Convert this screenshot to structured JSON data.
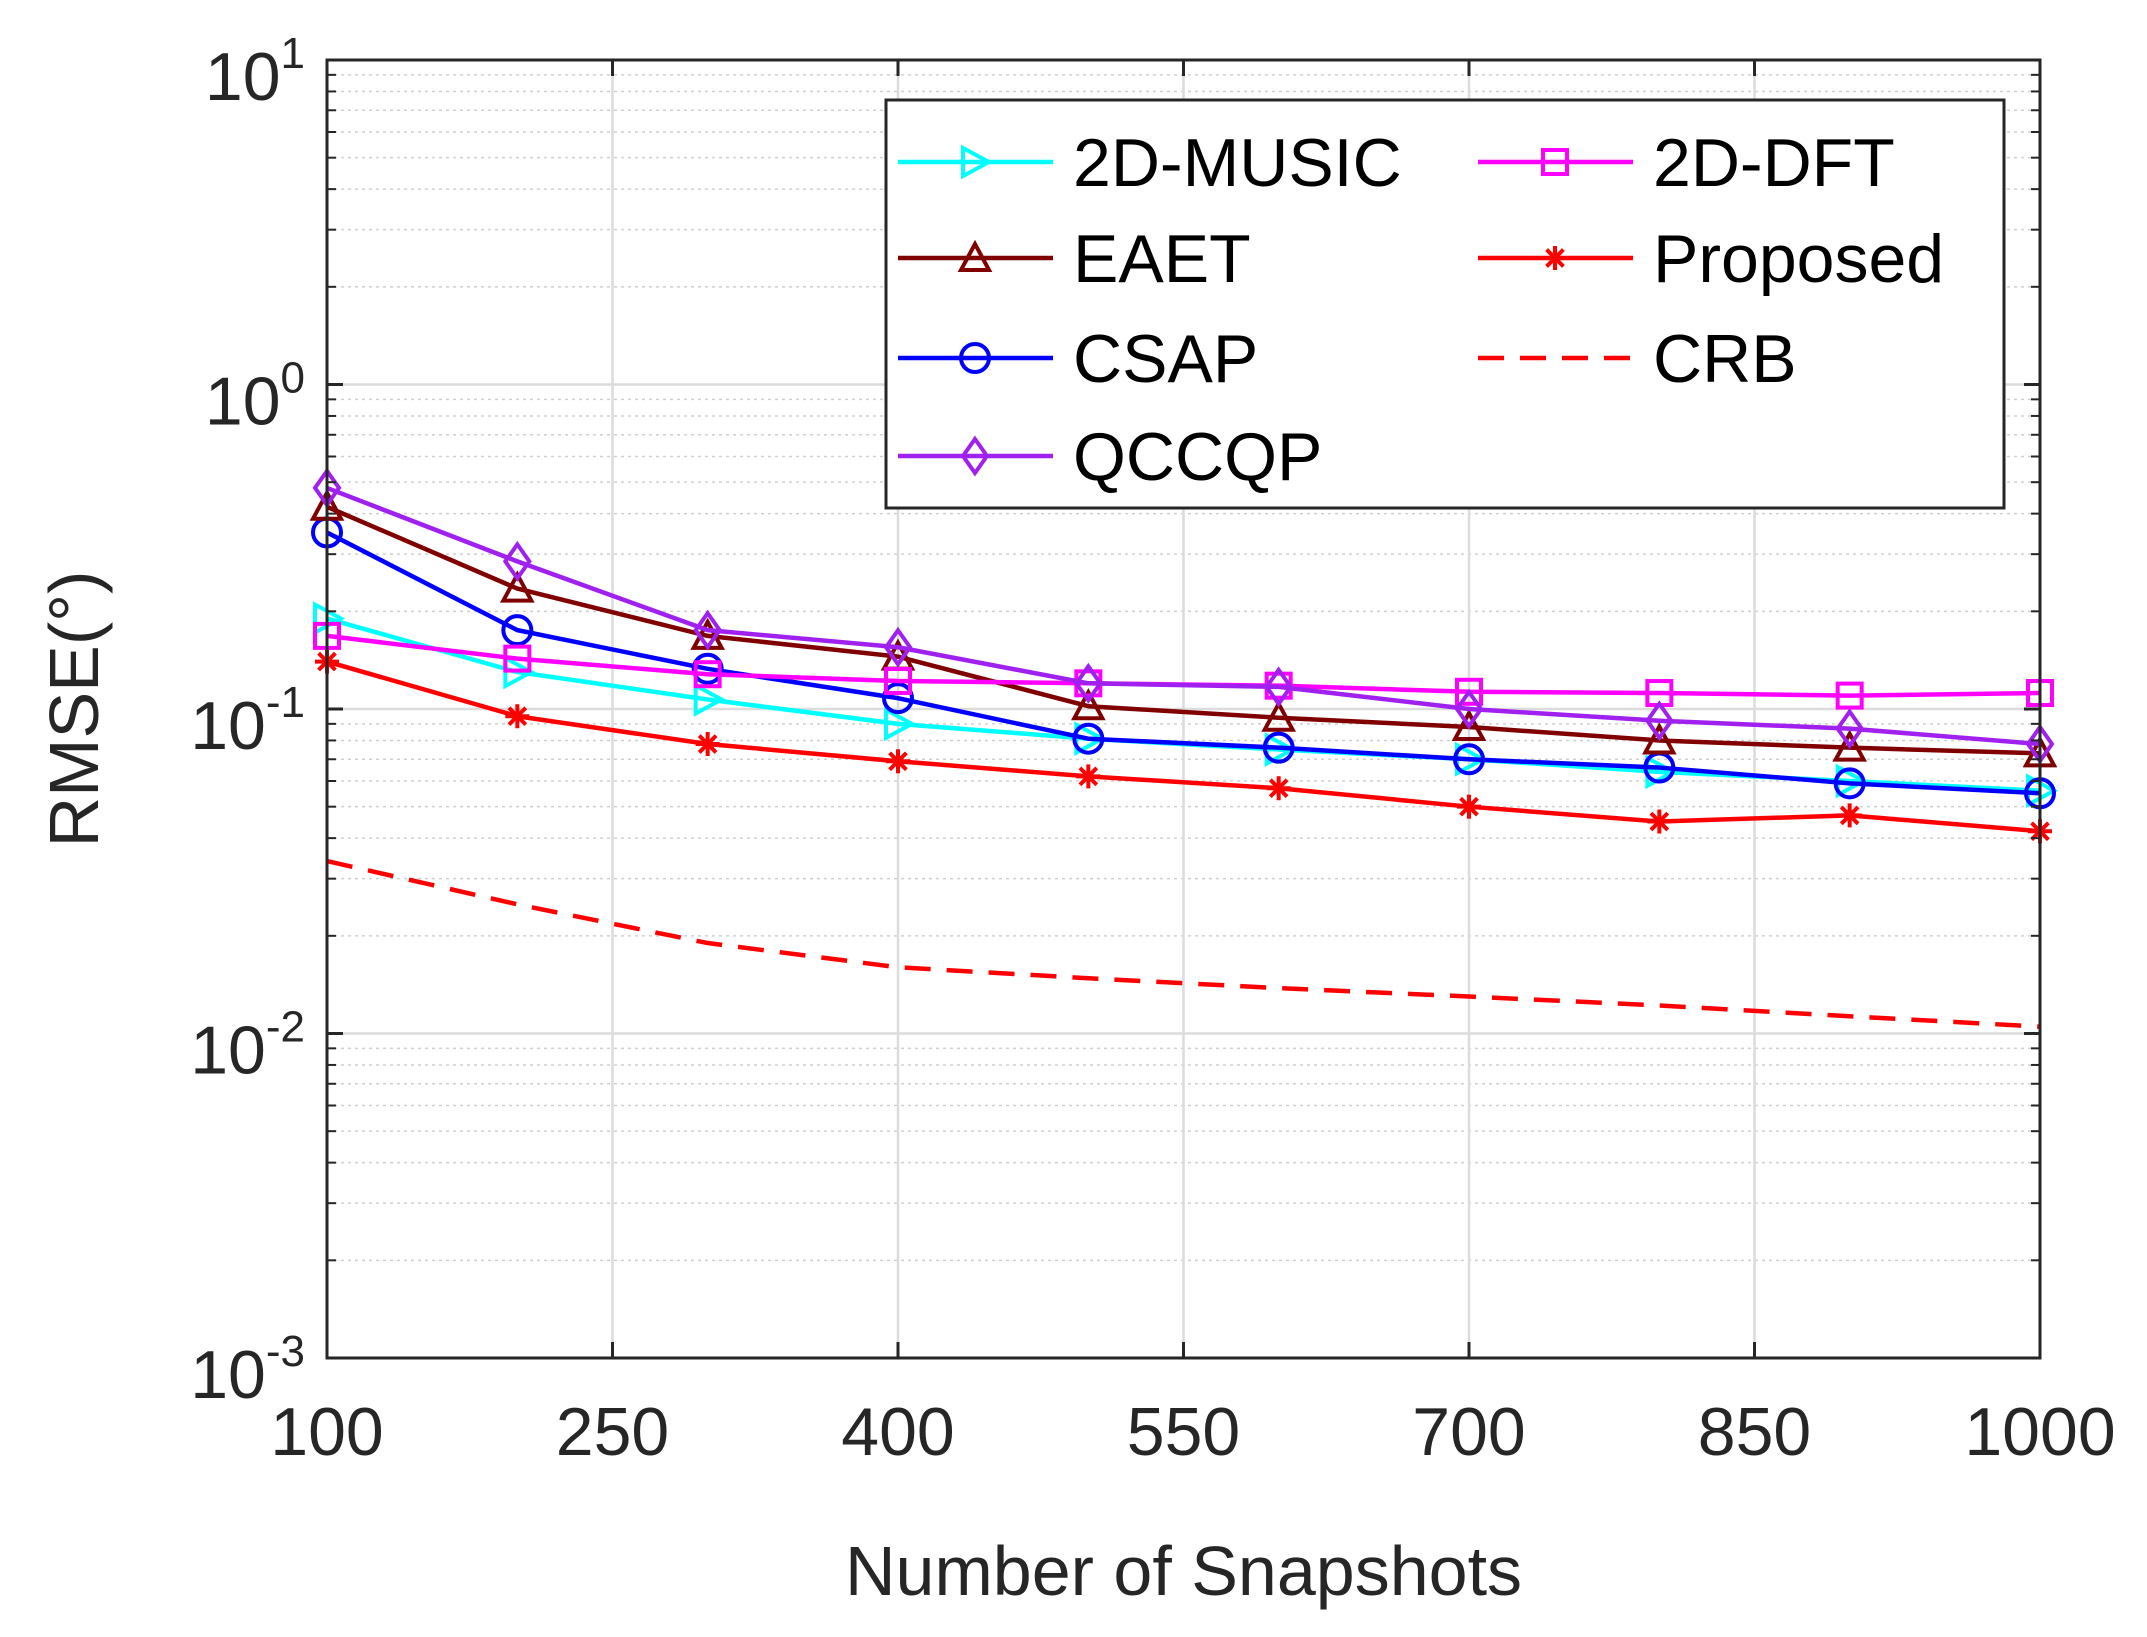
{
  "chart_data": {
    "type": "line",
    "title": "",
    "xlabel": "Number of Snapshots",
    "ylabel": "RMSE(°)",
    "xlim": [
      100,
      1000
    ],
    "ylim": [
      0.001,
      10
    ],
    "yscale": "log",
    "grid": true,
    "minor_grid": true,
    "legend_position": "top-right",
    "legend_columns": 2,
    "x_ticks": [
      100,
      250,
      400,
      550,
      700,
      850,
      1000
    ],
    "x_tick_labels": [
      "100",
      "250",
      "400",
      "550",
      "700",
      "850",
      "1000"
    ],
    "y_ticks": [
      {
        "value": 10,
        "base": "10",
        "exp": "1"
      },
      {
        "value": 1,
        "base": "10",
        "exp": "0"
      },
      {
        "value": 0.1,
        "base": "10",
        "exp": "-1"
      },
      {
        "value": 0.01,
        "base": "10",
        "exp": "-2"
      },
      {
        "value": 0.001,
        "base": "10",
        "exp": "-3"
      }
    ],
    "x": [
      100,
      200,
      300,
      400,
      500,
      600,
      700,
      800,
      900,
      1000
    ],
    "series": [
      {
        "name": "2D-MUSIC",
        "color": "#00FFFF",
        "marker": "triangle-right",
        "dash": "solid",
        "values": [
          0.19,
          0.13,
          0.107,
          0.09,
          0.081,
          0.075,
          0.07,
          0.064,
          0.06,
          0.056
        ]
      },
      {
        "name": "2D-DFT",
        "color": "#FF00FF",
        "marker": "square",
        "dash": "solid",
        "values": [
          0.168,
          0.143,
          0.128,
          0.122,
          0.12,
          0.118,
          0.113,
          0.112,
          0.11,
          0.112
        ]
      },
      {
        "name": "EAET",
        "color": "#800000",
        "marker": "triangle-up",
        "dash": "solid",
        "values": [
          0.42,
          0.235,
          0.168,
          0.145,
          0.102,
          0.094,
          0.088,
          0.08,
          0.076,
          0.073
        ]
      },
      {
        "name": "Proposed",
        "color": "#FF0000",
        "marker": "asterisk",
        "dash": "solid",
        "values": [
          0.14,
          0.095,
          0.078,
          0.069,
          0.062,
          0.057,
          0.05,
          0.045,
          0.047,
          0.042
        ]
      },
      {
        "name": "CSAP",
        "color": "#0000FF",
        "marker": "circle",
        "dash": "solid",
        "values": [
          0.35,
          0.175,
          0.133,
          0.108,
          0.081,
          0.076,
          0.07,
          0.066,
          0.059,
          0.055
        ]
      },
      {
        "name": "CRB",
        "color": "#FF0000",
        "marker": "none",
        "dash": "dashed",
        "values": [
          0.034,
          0.025,
          0.019,
          0.016,
          0.0148,
          0.0138,
          0.013,
          0.0122,
          0.0113,
          0.0105
        ]
      },
      {
        "name": "QCCQP",
        "color": "#A020F0",
        "marker": "diamond",
        "dash": "solid",
        "values": [
          0.48,
          0.285,
          0.175,
          0.155,
          0.12,
          0.117,
          0.1,
          0.092,
          0.087,
          0.078
        ]
      }
    ],
    "legend_order": [
      "2D-MUSIC",
      "2D-DFT",
      "EAET",
      "Proposed",
      "CSAP",
      "CRB",
      "QCCQP"
    ]
  }
}
